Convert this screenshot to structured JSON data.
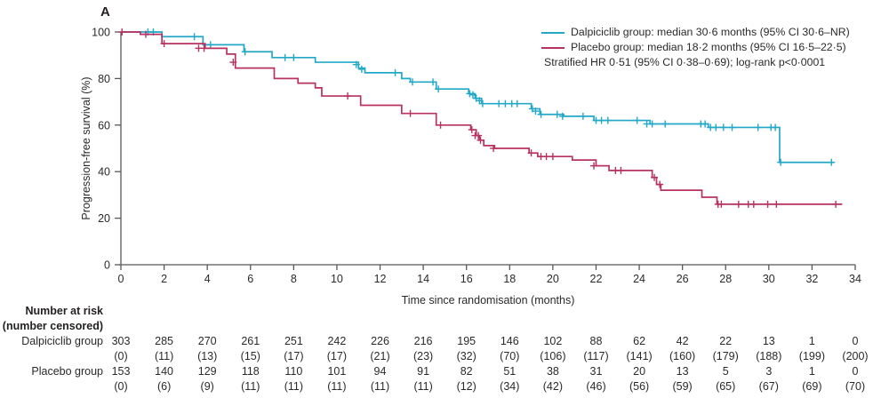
{
  "panel_label": "A",
  "colors": {
    "dalpiciclib": "#23a8c8",
    "placebo": "#b73261",
    "axis": "#58585a",
    "text": "#2a2a2a"
  },
  "legend": {
    "entries": [
      {
        "name": "Dalpiciclib group",
        "label": "Dalpiciclib group: median 30·6 months (95% CI 30·6–NR)",
        "color_key": "dalpiciclib"
      },
      {
        "name": "Placebo group",
        "label": "Placebo group: median 18·2 months (95% CI 16·5–22·5)",
        "color_key": "placebo"
      }
    ],
    "note": "Stratified HR 0·51 (95% CI 0·38–0·69); log-rank p<0·0001"
  },
  "chart_data": {
    "type": "line",
    "subtype": "kaplan-meier-step",
    "title": "",
    "xlabel": "Time since randomisation (months)",
    "ylabel": "Progression-free survival (%)",
    "xlim": [
      0,
      34
    ],
    "ylim": [
      0,
      100
    ],
    "xticks": [
      0,
      2,
      4,
      6,
      8,
      10,
      12,
      14,
      16,
      18,
      20,
      22,
      24,
      26,
      28,
      30,
      32,
      34
    ],
    "yticks": [
      0,
      20,
      40,
      60,
      80,
      100
    ],
    "grid": false,
    "legend_position": "top-right",
    "series": [
      {
        "name": "Dalpiciclib group",
        "color_key": "dalpiciclib",
        "steps": [
          [
            0,
            100
          ],
          [
            1.9,
            98
          ],
          [
            3.8,
            94.5
          ],
          [
            5.7,
            91.5
          ],
          [
            7.0,
            89
          ],
          [
            9.0,
            87
          ],
          [
            11.0,
            84.5
          ],
          [
            11.3,
            82.5
          ],
          [
            13.0,
            80
          ],
          [
            13.4,
            78.5
          ],
          [
            14.6,
            75.5
          ],
          [
            16.1,
            73.5
          ],
          [
            16.4,
            71.5
          ],
          [
            16.7,
            69.2
          ],
          [
            19.0,
            67
          ],
          [
            19.4,
            64.6
          ],
          [
            20.5,
            63.8
          ],
          [
            21.9,
            62
          ],
          [
            24.5,
            60.5
          ],
          [
            27.2,
            59
          ],
          [
            30.5,
            44
          ]
        ],
        "end_time": 33.0,
        "censors": [
          [
            1.25,
            100
          ],
          [
            1.5,
            100
          ],
          [
            3.4,
            98
          ],
          [
            4.15,
            94.5
          ],
          [
            5.75,
            91.5
          ],
          [
            7.6,
            89
          ],
          [
            8.0,
            89
          ],
          [
            10.9,
            86
          ],
          [
            11.15,
            84
          ],
          [
            12.7,
            82.5
          ],
          [
            13.5,
            78.5
          ],
          [
            14.45,
            78.5
          ],
          [
            14.7,
            75.5
          ],
          [
            16.15,
            73.5
          ],
          [
            16.3,
            73
          ],
          [
            16.45,
            71.5
          ],
          [
            16.6,
            70.5
          ],
          [
            16.75,
            69.2
          ],
          [
            17.5,
            69.2
          ],
          [
            17.8,
            69.2
          ],
          [
            18.1,
            69.2
          ],
          [
            18.35,
            69.2
          ],
          [
            19.05,
            67
          ],
          [
            19.2,
            66
          ],
          [
            19.45,
            64.6
          ],
          [
            20.2,
            64.6
          ],
          [
            20.45,
            63.8
          ],
          [
            21.4,
            63.8
          ],
          [
            22.0,
            62
          ],
          [
            22.25,
            62
          ],
          [
            22.55,
            62
          ],
          [
            23.9,
            62
          ],
          [
            24.35,
            60.5
          ],
          [
            24.6,
            60.5
          ],
          [
            25.2,
            60.5
          ],
          [
            26.85,
            60.5
          ],
          [
            27.05,
            60.5
          ],
          [
            27.3,
            59
          ],
          [
            27.55,
            59
          ],
          [
            27.9,
            59
          ],
          [
            28.3,
            59
          ],
          [
            29.5,
            59
          ],
          [
            30.1,
            59
          ],
          [
            30.3,
            59
          ],
          [
            30.55,
            44
          ],
          [
            32.9,
            44
          ]
        ]
      },
      {
        "name": "Placebo group",
        "color_key": "placebo",
        "steps": [
          [
            0,
            100
          ],
          [
            0.9,
            99
          ],
          [
            1.9,
            95
          ],
          [
            3.9,
            93
          ],
          [
            4.9,
            90.5
          ],
          [
            5.3,
            84.5
          ],
          [
            7.1,
            80
          ],
          [
            8.2,
            78
          ],
          [
            9.0,
            76
          ],
          [
            9.3,
            72.5
          ],
          [
            11.1,
            68.5
          ],
          [
            13.0,
            65
          ],
          [
            14.6,
            60
          ],
          [
            16.2,
            58
          ],
          [
            16.45,
            55.5
          ],
          [
            16.6,
            53.5
          ],
          [
            16.8,
            51.2
          ],
          [
            17.3,
            50
          ],
          [
            18.9,
            48
          ],
          [
            19.3,
            46.5
          ],
          [
            20.9,
            45
          ],
          [
            22.0,
            42.5
          ],
          [
            22.6,
            40.5
          ],
          [
            24.6,
            37.5
          ],
          [
            24.8,
            34.5
          ],
          [
            25.0,
            32
          ],
          [
            26.9,
            29
          ],
          [
            27.6,
            26
          ]
        ],
        "end_time": 33.4,
        "censors": [
          [
            0.05,
            100
          ],
          [
            1.15,
            99
          ],
          [
            2.0,
            95
          ],
          [
            3.6,
            93
          ],
          [
            3.85,
            93
          ],
          [
            5.2,
            87
          ],
          [
            10.5,
            72.5
          ],
          [
            13.4,
            65
          ],
          [
            14.8,
            60
          ],
          [
            16.25,
            58
          ],
          [
            16.4,
            55.5
          ],
          [
            16.55,
            55.5
          ],
          [
            16.65,
            53.5
          ],
          [
            17.25,
            50
          ],
          [
            19.0,
            48
          ],
          [
            19.45,
            46.5
          ],
          [
            19.7,
            46.5
          ],
          [
            20.0,
            46.5
          ],
          [
            21.9,
            42.5
          ],
          [
            22.9,
            40.5
          ],
          [
            23.15,
            40.5
          ],
          [
            24.7,
            37.5
          ],
          [
            24.95,
            34.5
          ],
          [
            27.65,
            26
          ],
          [
            27.8,
            26
          ],
          [
            28.6,
            26
          ],
          [
            29.05,
            26
          ],
          [
            29.3,
            26
          ],
          [
            29.95,
            26
          ],
          [
            30.35,
            26
          ],
          [
            33.1,
            26
          ]
        ]
      }
    ]
  },
  "risk_table": {
    "header_line1": "Number at risk",
    "header_line2": "(number censored)",
    "time_points": [
      0,
      2,
      4,
      6,
      8,
      10,
      12,
      14,
      16,
      18,
      20,
      22,
      24,
      26,
      28,
      30,
      32,
      34
    ],
    "rows": [
      {
        "label": "Dalpiciclib group",
        "at_risk": [
          303,
          285,
          270,
          261,
          251,
          242,
          226,
          216,
          195,
          146,
          102,
          88,
          62,
          42,
          22,
          13,
          1,
          0
        ],
        "censored": [
          "(0)",
          "(11)",
          "(13)",
          "(15)",
          "(17)",
          "(17)",
          "(21)",
          "(23)",
          "(32)",
          "(70)",
          "(106)",
          "(117)",
          "(141)",
          "(160)",
          "(179)",
          "(188)",
          "(199)",
          "(200)"
        ]
      },
      {
        "label": "Placebo group",
        "at_risk": [
          153,
          140,
          129,
          118,
          110,
          101,
          94,
          91,
          82,
          51,
          38,
          31,
          20,
          13,
          5,
          3,
          1,
          0
        ],
        "censored": [
          "(0)",
          "(6)",
          "(9)",
          "(11)",
          "(11)",
          "(11)",
          "(11)",
          "(11)",
          "(12)",
          "(34)",
          "(42)",
          "(46)",
          "(56)",
          "(59)",
          "(65)",
          "(67)",
          "(69)",
          "(70)"
        ]
      }
    ]
  }
}
